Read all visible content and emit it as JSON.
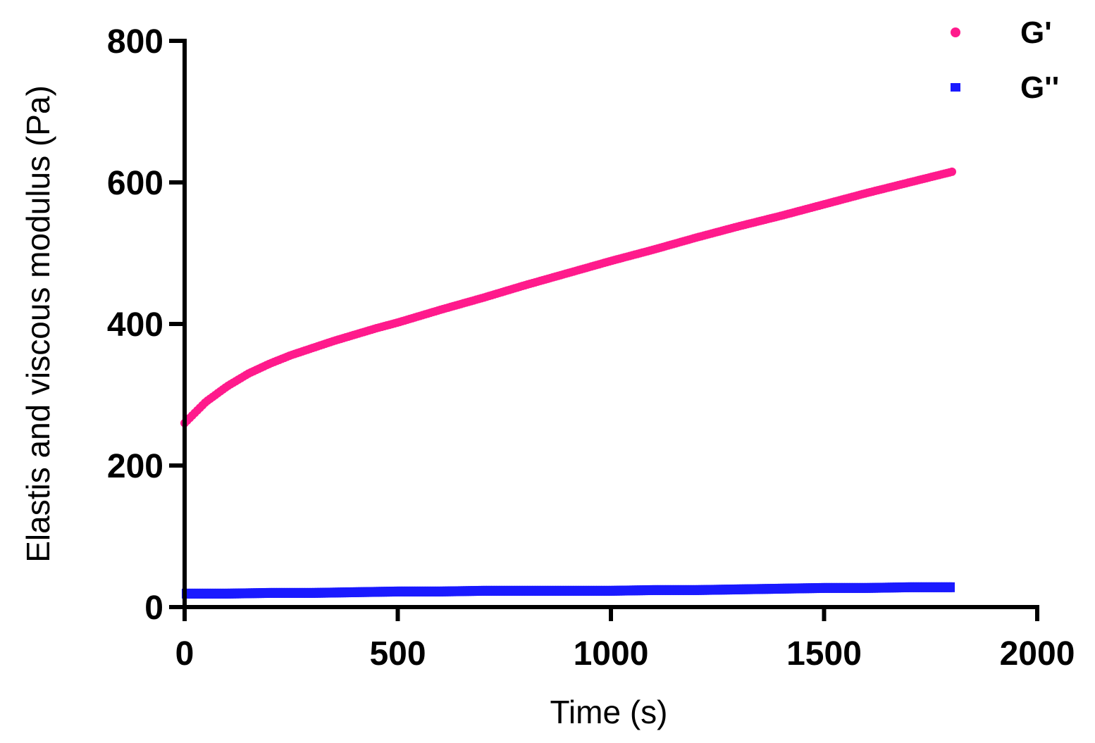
{
  "chart_data": {
    "type": "scatter",
    "title": "",
    "xlabel": "Time (s)",
    "ylabel": "Elastis and viscous modulus (Pa)",
    "xlim": [
      0,
      2000
    ],
    "ylim": [
      0,
      800
    ],
    "x_ticks": [
      0,
      500,
      1000,
      1500,
      2000
    ],
    "y_ticks": [
      0,
      200,
      400,
      600,
      800
    ],
    "x_tick_labels": [
      "0",
      "500",
      "1000",
      "1500",
      "2000"
    ],
    "y_tick_labels": [
      "0",
      "200",
      "400",
      "600",
      "800"
    ],
    "grid": false,
    "legend_position": "top-right",
    "series": [
      {
        "name": "G'",
        "color": "#ff1a8c",
        "x": [
          0,
          50,
          100,
          150,
          200,
          250,
          300,
          350,
          400,
          450,
          500,
          600,
          700,
          800,
          900,
          1000,
          1100,
          1200,
          1300,
          1400,
          1500,
          1600,
          1700,
          1800
        ],
        "y": [
          260,
          290,
          312,
          330,
          344,
          356,
          366,
          376,
          385,
          394,
          402,
          420,
          437,
          455,
          472,
          489,
          505,
          522,
          538,
          553,
          569,
          585,
          600,
          615
        ]
      },
      {
        "name": "G''",
        "color": "#1a1aff",
        "x": [
          0,
          100,
          200,
          300,
          400,
          500,
          600,
          700,
          800,
          900,
          1000,
          1100,
          1200,
          1300,
          1400,
          1500,
          1600,
          1700,
          1800
        ],
        "y": [
          19,
          19,
          20,
          20,
          21,
          22,
          22,
          23,
          23,
          23,
          23,
          24,
          24,
          25,
          26,
          27,
          27,
          28,
          28
        ]
      }
    ]
  }
}
